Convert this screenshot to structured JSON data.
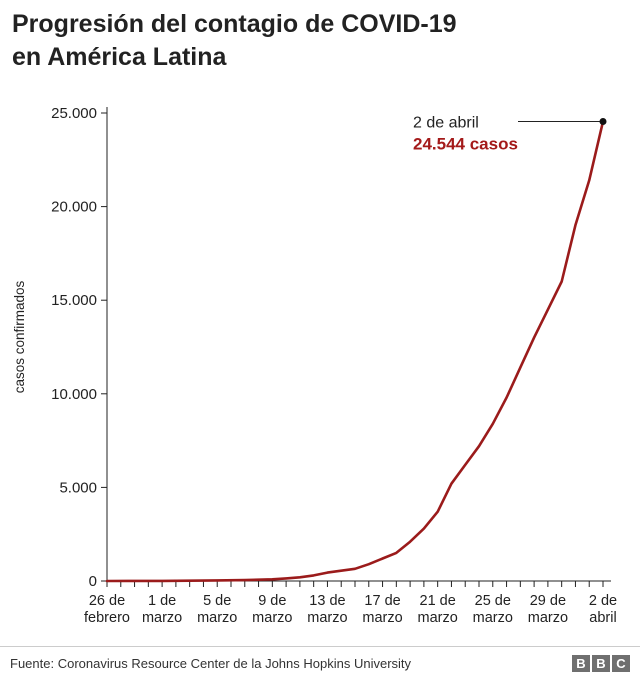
{
  "header": {
    "title_line1": "Progresión del contagio de COVID-19",
    "title_line2": "en América Latina"
  },
  "footer": {
    "source": "Fuente: Coronavirus Resource Center de la Johns Hopkins University",
    "logo_letters": [
      "B",
      "B",
      "C"
    ]
  },
  "colors": {
    "series": "#9b1b1b",
    "highlight": "#a41a1a",
    "axis": "#222222"
  },
  "chart_data": {
    "type": "line",
    "title": "Progresión del contagio de COVID-19 en América Latina",
    "xlabel": "",
    "ylabel": "casos confirmados",
    "ylim": [
      0,
      25000
    ],
    "y_ticks": [
      0,
      5000,
      10000,
      15000,
      20000,
      25000
    ],
    "y_tick_labels": [
      "0",
      "5.000",
      "10.000",
      "15.000",
      "20.000",
      "25.000"
    ],
    "x_ticks": [
      {
        "day": 0,
        "line1": "26 de",
        "line2": "febrero"
      },
      {
        "day": 4,
        "line1": "1 de",
        "line2": "marzo"
      },
      {
        "day": 8,
        "line1": "5 de",
        "line2": "marzo"
      },
      {
        "day": 12,
        "line1": "9 de",
        "line2": "marzo"
      },
      {
        "day": 16,
        "line1": "13 de",
        "line2": "marzo"
      },
      {
        "day": 20,
        "line1": "17 de",
        "line2": "marzo"
      },
      {
        "day": 24,
        "line1": "21 de",
        "line2": "marzo"
      },
      {
        "day": 28,
        "line1": "25 de",
        "line2": "marzo"
      },
      {
        "day": 32,
        "line1": "29 de",
        "line2": "marzo"
      },
      {
        "day": 36,
        "line1": "2 de",
        "line2": "abril"
      }
    ],
    "x_range": [
      0,
      36
    ],
    "grid": false,
    "series": [
      {
        "x": [
          0,
          4,
          8,
          10,
          12,
          13,
          14,
          15,
          16,
          17,
          18,
          19,
          20,
          21,
          22,
          23,
          24,
          25,
          26,
          27,
          28,
          29,
          30,
          31,
          32,
          33,
          34,
          35,
          36
        ],
        "y": [
          1,
          5,
          30,
          50,
          90,
          140,
          200,
          300,
          450,
          550,
          650,
          900,
          1200,
          1500,
          2100,
          2800,
          3700,
          5200,
          6200,
          7200,
          8400,
          9800,
          11400,
          13000,
          14500,
          16000,
          19000,
          21400,
          24544
        ]
      }
    ],
    "annotation": {
      "date": "2 de abril",
      "value": "24.544 casos",
      "x": 36,
      "y": 24544
    }
  }
}
